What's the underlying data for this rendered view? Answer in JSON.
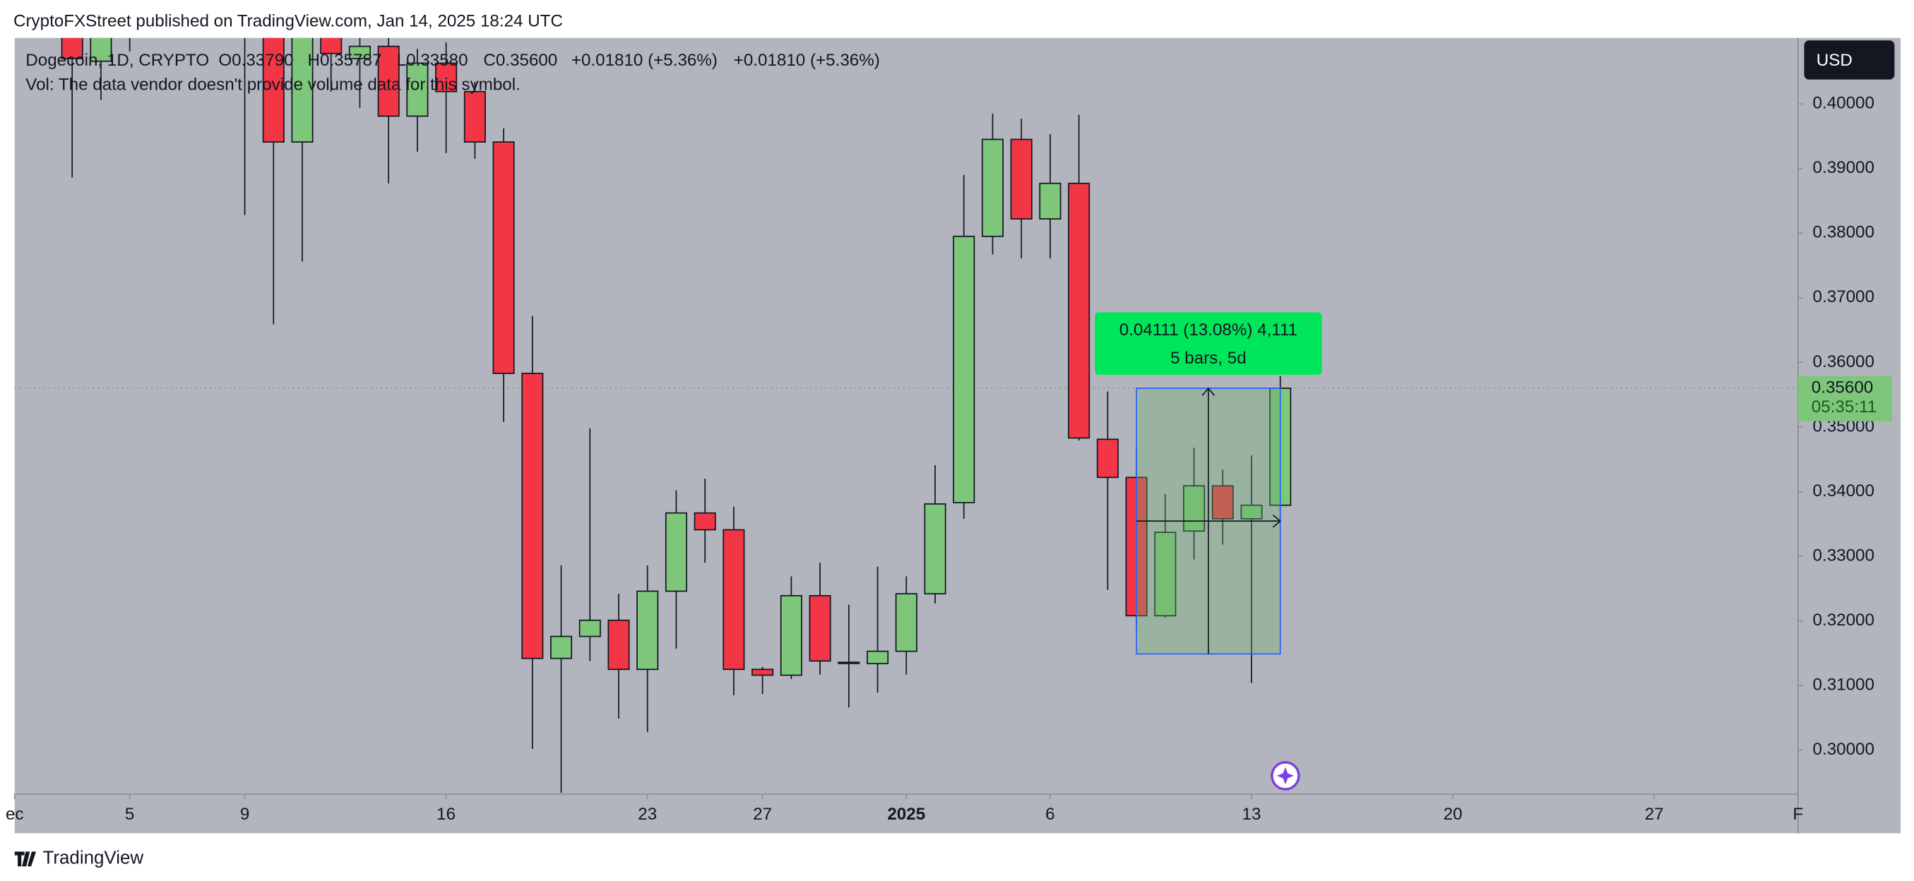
{
  "header": {
    "publisher": "CryptoFXStreet published on TradingView.com, Jan 14, 2025 18:24 UTC"
  },
  "chart_data": {
    "type": "candlestick",
    "legend": {
      "symbol": "Dogecoin, 1D, CRYPTO",
      "open": "O0.33790",
      "high": "H0.35787",
      "low": "L0.33580",
      "close": "C0.35600",
      "change": "+0.01810 (+5.36%)",
      "change2": "+0.01810 (+5.36%)"
    },
    "volume_note": "Vol: The data vendor doesn't provide volume data for this symbol.",
    "currency": "USD",
    "up_color": "#7dc67a",
    "down_color": "#f23645",
    "x": [
      0,
      1,
      2,
      6,
      7,
      8,
      9,
      10,
      11,
      12,
      13,
      14,
      15,
      16,
      17,
      18,
      19,
      20,
      21,
      22,
      23,
      24,
      25,
      26,
      27,
      28,
      29,
      30,
      31,
      32,
      33,
      34,
      35,
      36,
      37,
      38,
      39,
      40,
      41,
      42
    ],
    "open": [
      0.415,
      0.4066,
      0.416,
      0.418,
      0.413,
      0.3941,
      0.412,
      0.407,
      0.4089,
      0.3981,
      0.4063,
      0.4019,
      0.3941,
      0.3583,
      0.3142,
      0.3176,
      0.3201,
      0.3125,
      0.3246,
      0.3367,
      0.3341,
      0.3125,
      0.3116,
      0.3239,
      0.3136,
      0.3134,
      0.3153,
      0.3242,
      0.3383,
      0.3795,
      0.3945,
      0.3822,
      0.3877,
      0.3481,
      0.3422,
      0.3208,
      0.3339,
      0.3409,
      0.3358,
      0.3379
    ],
    "high": [
      0.42,
      0.42,
      0.42,
      0.42,
      0.42,
      0.42,
      0.42,
      0.42,
      0.42,
      0.4085,
      0.4095,
      0.4034,
      0.3962,
      0.3672,
      0.3286,
      0.3498,
      0.3242,
      0.3286,
      0.3402,
      0.342,
      0.3377,
      0.3129,
      0.3269,
      0.329,
      0.3225,
      0.3284,
      0.3269,
      0.3441,
      0.389,
      0.3985,
      0.3977,
      0.3953,
      0.3983,
      0.3555,
      0.3468,
      0.3396,
      0.3468,
      0.3434,
      0.3456,
      0.35787
    ],
    "low": [
      0.3886,
      0.4006,
      0.4081,
      0.3828,
      0.3659,
      0.3756,
      0.4019,
      0.3994,
      0.3877,
      0.3926,
      0.3924,
      0.3915,
      0.3508,
      0.3002,
      0.2934,
      0.3138,
      0.3049,
      0.3028,
      0.3157,
      0.329,
      0.3085,
      0.3087,
      0.311,
      0.3117,
      0.3066,
      0.3089,
      0.3117,
      0.3227,
      0.3358,
      0.3767,
      0.3761,
      0.3761,
      0.3479,
      0.3248,
      0.3189,
      0.3205,
      0.3295,
      0.3318,
      0.3104,
      0.3358
    ],
    "close": [
      0.407,
      0.414,
      0.413,
      0.414,
      0.3941,
      0.412,
      0.4078,
      0.4089,
      0.3981,
      0.4063,
      0.4019,
      0.3941,
      0.3583,
      0.3142,
      0.3176,
      0.3201,
      0.3125,
      0.3246,
      0.3367,
      0.3341,
      0.3125,
      0.3116,
      0.3239,
      0.3138,
      0.3136,
      0.3153,
      0.3242,
      0.3381,
      0.3795,
      0.3945,
      0.3822,
      0.3877,
      0.3483,
      0.3422,
      0.3208,
      0.3337,
      0.3409,
      0.3358,
      0.3379,
      0.356
    ],
    "xlim": [
      -2,
      60
    ],
    "xticks": [
      {
        "value": -2,
        "label": "ec"
      },
      {
        "value": 2,
        "label": "5"
      },
      {
        "value": 6,
        "label": "9"
      },
      {
        "value": 13,
        "label": "16"
      },
      {
        "value": 20,
        "label": "23"
      },
      {
        "value": 24,
        "label": "27"
      },
      {
        "value": 29,
        "label": "2025"
      },
      {
        "value": 34,
        "label": "6"
      },
      {
        "value": 41,
        "label": "13"
      },
      {
        "value": 48,
        "label": "20"
      },
      {
        "value": 55,
        "label": "27"
      },
      {
        "value": 60,
        "label": "F"
      }
    ],
    "ylim": [
      0.2932,
      0.4102
    ],
    "yticks": [
      {
        "value": 0.3,
        "label": "0.30000"
      },
      {
        "value": 0.31,
        "label": "0.31000"
      },
      {
        "value": 0.32,
        "label": "0.32000"
      },
      {
        "value": 0.33,
        "label": "0.33000"
      },
      {
        "value": 0.34,
        "label": "0.34000"
      },
      {
        "value": 0.35,
        "label": "0.35000"
      },
      {
        "value": 0.36,
        "label": "0.36000"
      },
      {
        "value": 0.37,
        "label": "0.37000"
      },
      {
        "value": 0.38,
        "label": "0.38000"
      },
      {
        "value": 0.39,
        "label": "0.39000"
      },
      {
        "value": 0.4,
        "label": "0.40000"
      }
    ],
    "last_price": {
      "value": 0.356,
      "label": "0.35600",
      "countdown": "05:35:11"
    },
    "measure": {
      "label": "0.04111 (13.08%) 4,111",
      "sublabel": "5 bars, 5d",
      "x": [
        37,
        42
      ],
      "y": [
        0.31489,
        0.356
      ]
    }
  },
  "footer": {
    "brand": "TradingView"
  }
}
